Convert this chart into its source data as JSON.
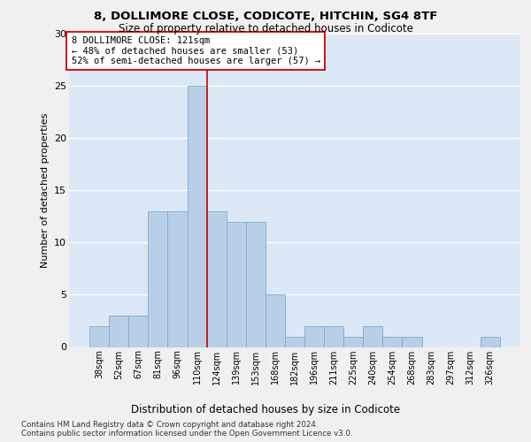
{
  "title": "8, DOLLIMORE CLOSE, CODICOTE, HITCHIN, SG4 8TF",
  "subtitle": "Size of property relative to detached houses in Codicote",
  "xlabel_bottom": "Distribution of detached houses by size in Codicote",
  "ylabel": "Number of detached properties",
  "categories": [
    "38sqm",
    "52sqm",
    "67sqm",
    "81sqm",
    "96sqm",
    "110sqm",
    "124sqm",
    "139sqm",
    "153sqm",
    "168sqm",
    "182sqm",
    "196sqm",
    "211sqm",
    "225sqm",
    "240sqm",
    "254sqm",
    "268sqm",
    "283sqm",
    "297sqm",
    "312sqm",
    "326sqm"
  ],
  "values": [
    2,
    3,
    3,
    13,
    13,
    25,
    13,
    12,
    12,
    5,
    1,
    2,
    2,
    1,
    2,
    1,
    1,
    0,
    0,
    0,
    1
  ],
  "bar_color": "#b8cfe8",
  "bar_edge_color": "#7aadd4",
  "vline_x_index": 6,
  "vline_color": "#cc0000",
  "annotation_text": "8 DOLLIMORE CLOSE: 121sqm\n← 48% of detached houses are smaller (53)\n52% of semi-detached houses are larger (57) →",
  "annotation_box_color": "#ffffff",
  "annotation_box_edge": "#cc0000",
  "ylim": [
    0,
    30
  ],
  "yticks": [
    0,
    5,
    10,
    15,
    20,
    25,
    30
  ],
  "background_color": "#dce8f5",
  "grid_color": "#ffffff",
  "footer_line1": "Contains HM Land Registry data © Crown copyright and database right 2024.",
  "footer_line2": "Contains public sector information licensed under the Open Government Licence v3.0."
}
